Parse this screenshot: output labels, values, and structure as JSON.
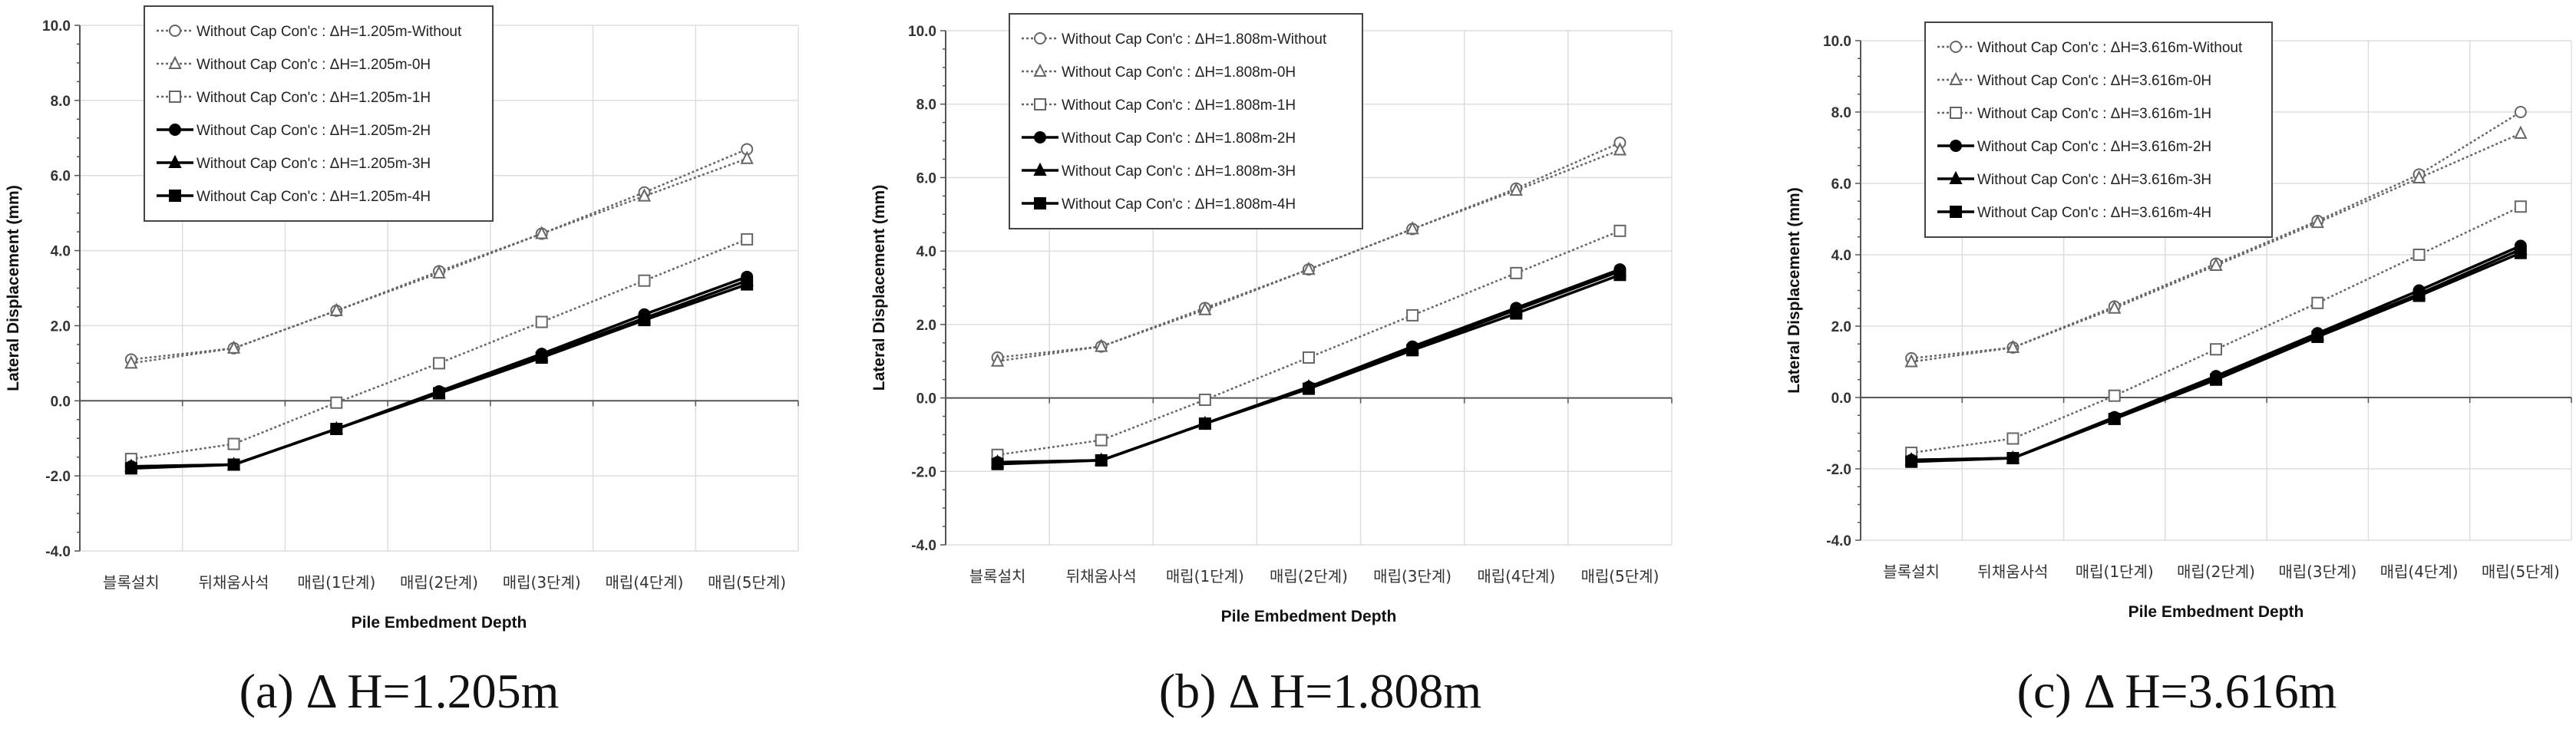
{
  "chart_data": [
    {
      "type": "line",
      "caption": "(a)  Δ H=1.205m",
      "xlabel": "Pile Embedment Depth",
      "ylabel": "Lateral Displacement (mm)",
      "ylim": [
        -4,
        10
      ],
      "yticks": [
        "-4.0",
        "-2.0",
        "0.0",
        "2.0",
        "4.0",
        "6.0",
        "8.0",
        "10.0"
      ],
      "grid": true,
      "legend_position": "top-left",
      "categories": [
        "블록설치",
        "뒤채움사석",
        "매립(1단계)",
        "매립(2단계)",
        "매립(3단계)",
        "매립(4단계)",
        "매립(5단계)"
      ],
      "series": [
        {
          "name": "Without Cap Con'c : ΔH=1.205m-Without",
          "marker": "circle-open",
          "line": "dotted",
          "values": [
            1.1,
            1.4,
            2.4,
            3.45,
            4.45,
            5.55,
            6.7
          ]
        },
        {
          "name": "Without Cap Con'c : ΔH=1.205m-0H",
          "marker": "triangle-open",
          "line": "dotted",
          "values": [
            1.0,
            1.4,
            2.4,
            3.4,
            4.45,
            5.45,
            6.45
          ]
        },
        {
          "name": "Without Cap Con'c : ΔH=1.205m-1H",
          "marker": "square-open",
          "line": "dotted",
          "values": [
            -1.55,
            -1.15,
            -0.05,
            1.0,
            2.1,
            3.2,
            4.3
          ]
        },
        {
          "name": "Without Cap Con'c : ΔH=1.205m-2H",
          "marker": "circle-filled",
          "line": "solid",
          "values": [
            -1.75,
            -1.7,
            -0.75,
            0.25,
            1.25,
            2.3,
            3.3
          ]
        },
        {
          "name": "Without Cap Con'c : ΔH=1.205m-3H",
          "marker": "triangle-filled",
          "line": "solid",
          "values": [
            -1.75,
            -1.7,
            -0.75,
            0.2,
            1.2,
            2.2,
            3.2
          ]
        },
        {
          "name": "Without Cap Con'c : ΔH=1.205m-4H",
          "marker": "square-filled",
          "line": "solid",
          "values": [
            -1.8,
            -1.7,
            -0.75,
            0.2,
            1.15,
            2.15,
            3.1
          ]
        }
      ]
    },
    {
      "type": "line",
      "caption": "(b)  Δ H=1.808m",
      "xlabel": "Pile Embedment Depth",
      "ylabel": "Lateral Displacement (mm)",
      "ylim": [
        -4,
        10
      ],
      "yticks": [
        "-4.0",
        "-2.0",
        "0.0",
        "2.0",
        "4.0",
        "6.0",
        "8.0",
        "10.0"
      ],
      "grid": true,
      "legend_position": "top-left",
      "categories": [
        "블록설치",
        "뒤채움사석",
        "매립(1단계)",
        "매립(2단계)",
        "매립(3단계)",
        "매립(4단계)",
        "매립(5단계)"
      ],
      "series": [
        {
          "name": "Without Cap Con'c : ΔH=1.808m-Without",
          "marker": "circle-open",
          "line": "dotted",
          "values": [
            1.1,
            1.4,
            2.45,
            3.5,
            4.6,
            5.7,
            6.95
          ]
        },
        {
          "name": "Without Cap Con'c : ΔH=1.808m-0H",
          "marker": "triangle-open",
          "line": "dotted",
          "values": [
            1.0,
            1.4,
            2.4,
            3.5,
            4.6,
            5.65,
            6.75
          ]
        },
        {
          "name": "Without Cap Con'c : ΔH=1.808m-1H",
          "marker": "square-open",
          "line": "dotted",
          "values": [
            -1.55,
            -1.15,
            -0.05,
            1.1,
            2.25,
            3.4,
            4.55
          ]
        },
        {
          "name": "Without Cap Con'c : ΔH=1.808m-2H",
          "marker": "circle-filled",
          "line": "solid",
          "values": [
            -1.75,
            -1.7,
            -0.7,
            0.3,
            1.4,
            2.45,
            3.5
          ]
        },
        {
          "name": "Without Cap Con'c : ΔH=1.808m-3H",
          "marker": "triangle-filled",
          "line": "solid",
          "values": [
            -1.75,
            -1.7,
            -0.7,
            0.3,
            1.35,
            2.4,
            3.45
          ]
        },
        {
          "name": "Without Cap Con'c : ΔH=1.808m-4H",
          "marker": "square-filled",
          "line": "solid",
          "values": [
            -1.8,
            -1.7,
            -0.7,
            0.25,
            1.3,
            2.3,
            3.35
          ]
        }
      ]
    },
    {
      "type": "line",
      "caption": "(c) Δ H=3.616m",
      "xlabel": "Pile Embedment Depth",
      "ylabel": "Lateral Displacement (mm)",
      "ylim": [
        -4,
        10
      ],
      "yticks": [
        "-4.0",
        "-2.0",
        "0.0",
        "2.0",
        "4.0",
        "6.0",
        "8.0",
        "10.0"
      ],
      "grid": true,
      "legend_position": "top-left",
      "categories": [
        "블록설치",
        "뒤채움사석",
        "매립(1단계)",
        "매립(2단계)",
        "매립(3단계)",
        "매립(4단계)",
        "매립(5단계)"
      ],
      "series": [
        {
          "name": "Without Cap Con'c : ΔH=3.616m-Without",
          "marker": "circle-open",
          "line": "dotted",
          "values": [
            1.1,
            1.4,
            2.55,
            3.75,
            4.95,
            6.25,
            8.0
          ]
        },
        {
          "name": "Without Cap Con'c : ΔH=3.616m-0H",
          "marker": "triangle-open",
          "line": "dotted",
          "values": [
            1.0,
            1.4,
            2.5,
            3.7,
            4.9,
            6.15,
            7.4
          ]
        },
        {
          "name": "Without Cap Con'c : ΔH=3.616m-1H",
          "marker": "square-open",
          "line": "dotted",
          "values": [
            -1.55,
            -1.15,
            0.05,
            1.35,
            2.65,
            4.0,
            5.35
          ]
        },
        {
          "name": "Without Cap Con'c : ΔH=3.616m-2H",
          "marker": "circle-filled",
          "line": "solid",
          "values": [
            -1.75,
            -1.7,
            -0.55,
            0.6,
            1.8,
            3.0,
            4.25
          ]
        },
        {
          "name": "Without Cap Con'c : ΔH=3.616m-3H",
          "marker": "triangle-filled",
          "line": "solid",
          "values": [
            -1.75,
            -1.7,
            -0.6,
            0.55,
            1.75,
            2.9,
            4.15
          ]
        },
        {
          "name": "Without Cap Con'c : ΔH=3.616m-4H",
          "marker": "square-filled",
          "line": "solid",
          "values": [
            -1.8,
            -1.7,
            -0.6,
            0.5,
            1.7,
            2.85,
            4.05
          ]
        }
      ]
    }
  ]
}
